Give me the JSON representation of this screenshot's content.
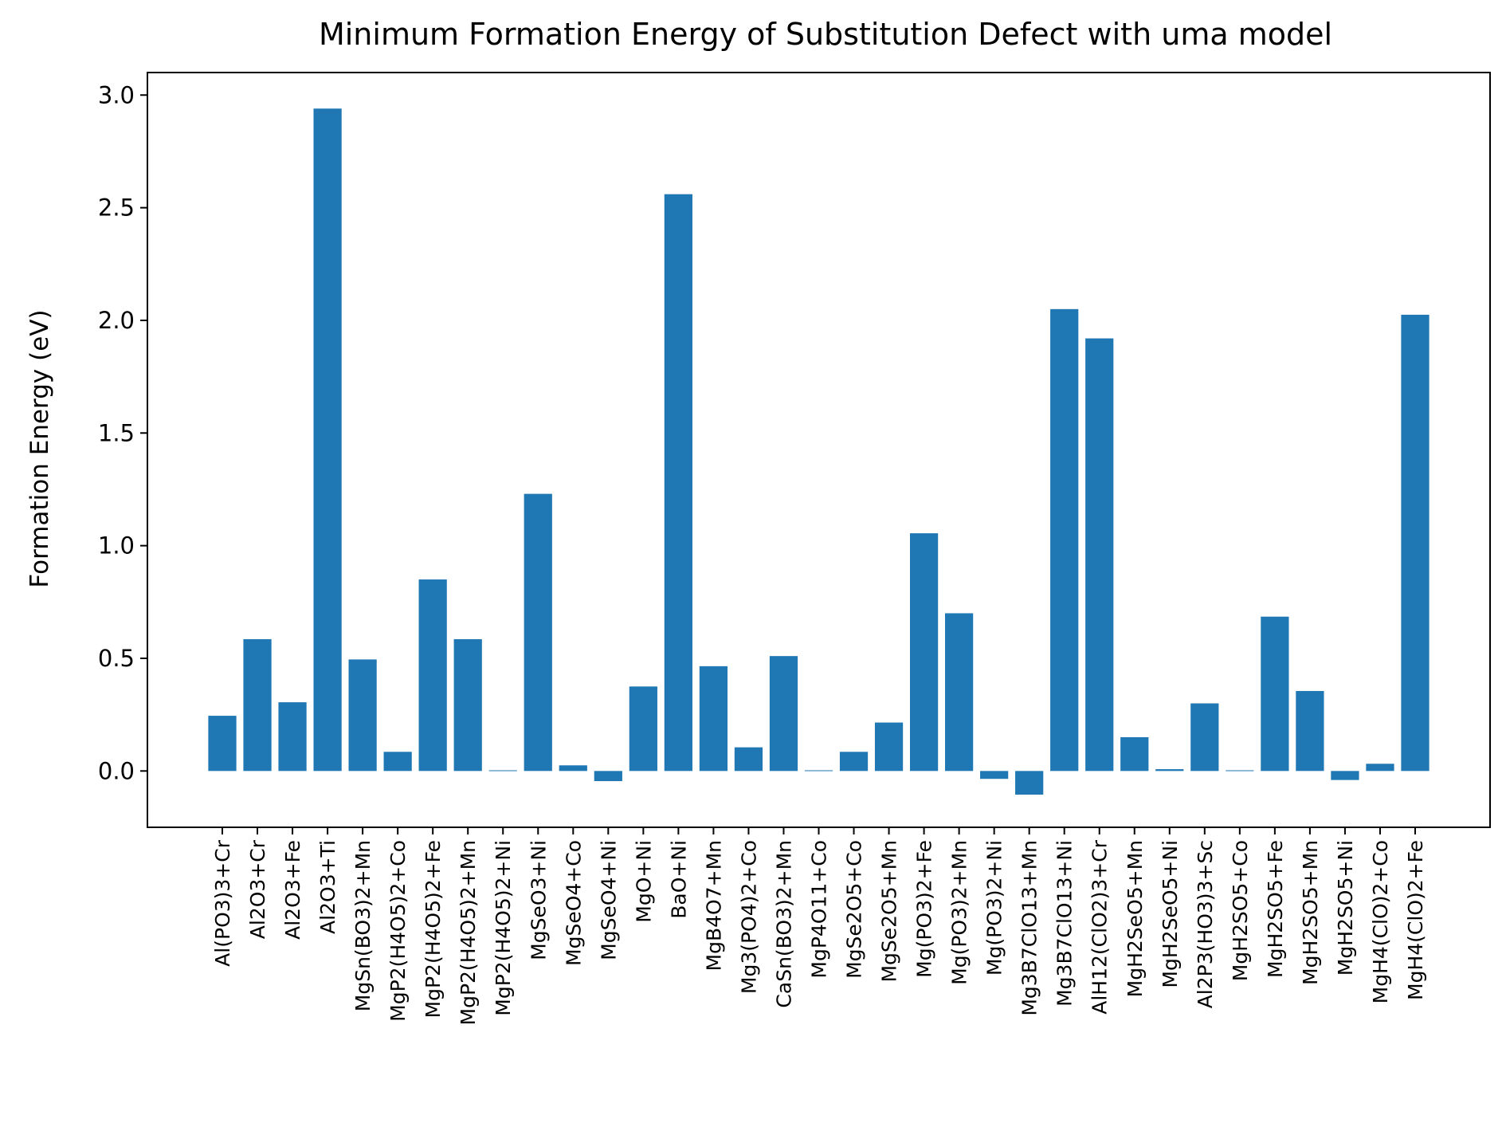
{
  "chart_data": {
    "type": "bar",
    "title": "Minimum Formation Energy of Substitution Defect with uma model",
    "xlabel": "",
    "ylabel": "Formation Energy (eV)",
    "ylim": [
      -0.25,
      3.1
    ],
    "yticks": [
      "0.0",
      "0.5",
      "1.0",
      "1.5",
      "2.0",
      "2.5",
      "3.0"
    ],
    "grid": false,
    "bar_color": "#1f77b4",
    "categories": [
      "Al(PO3)3+Cr",
      "Al2O3+Cr",
      "Al2O3+Fe",
      "Al2O3+Ti",
      "MgSn(BO3)2+Mn",
      "MgP2(H4O5)2+Co",
      "MgP2(H4O5)2+Fe",
      "MgP2(H4O5)2+Mn",
      "MgP2(H4O5)2+Ni",
      "MgSeO3+Ni",
      "MgSeO4+Co",
      "MgSeO4+Ni",
      "MgO+Ni",
      "BaO+Ni",
      "MgB4O7+Mn",
      "Mg3(PO4)2+Co",
      "CaSn(BO3)2+Mn",
      "MgP4O11+Co",
      "MgSe2O5+Co",
      "MgSe2O5+Mn",
      "Mg(PO3)2+Fe",
      "Mg(PO3)2+Mn",
      "Mg(PO3)2+Ni",
      "Mg3B7ClO13+Mn",
      "Mg3B7ClO13+Ni",
      "AlH12(ClO2)3+Cr",
      "MgH2SeO5+Mn",
      "MgH2SeO5+Ni",
      "Al2P3(HO3)3+Sc",
      "MgH2SO5+Co",
      "MgH2SO5+Fe",
      "MgH2SO5+Mn",
      "MgH2SO5+Ni",
      "MgH4(ClO)2+Co",
      "MgH4(ClO)2+Fe"
    ],
    "values": [
      0.245,
      0.585,
      0.305,
      2.94,
      0.495,
      0.085,
      0.85,
      0.585,
      0.003,
      1.23,
      0.025,
      -0.045,
      0.375,
      2.56,
      0.465,
      0.105,
      0.51,
      0.003,
      0.085,
      0.215,
      1.055,
      0.7,
      -0.035,
      -0.105,
      2.05,
      1.92,
      0.15,
      0.008,
      0.3,
      0.003,
      0.685,
      0.355,
      -0.04,
      0.032,
      2.025
    ]
  }
}
